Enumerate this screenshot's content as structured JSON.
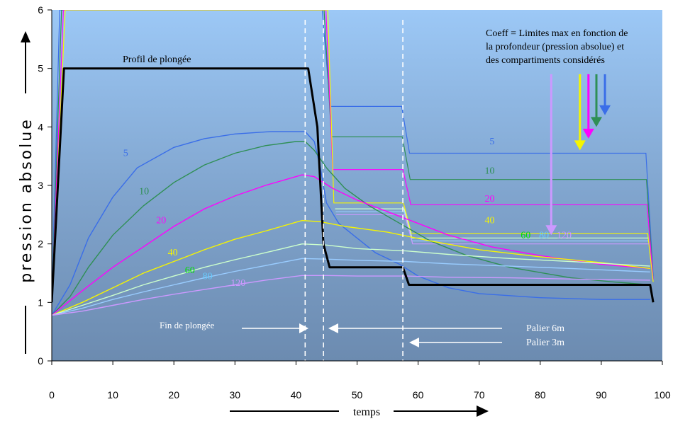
{
  "chart_data": {
    "type": "line",
    "xlabel": "temps",
    "ylabel": "pression absolue",
    "xlim": [
      0,
      100
    ],
    "ylim": [
      0,
      6
    ],
    "xticks": [
      0,
      10,
      20,
      30,
      40,
      50,
      60,
      70,
      80,
      90,
      100
    ],
    "yticks": [
      0,
      1,
      2,
      3,
      4,
      5,
      6
    ],
    "grid": false,
    "profile": {
      "name": "Profil de plongée",
      "color": "#000000",
      "points": [
        [
          0,
          1
        ],
        [
          2,
          5
        ],
        [
          42,
          5
        ],
        [
          43.5,
          4
        ],
        [
          44.5,
          2
        ],
        [
          45.5,
          1.6
        ],
        [
          57.5,
          1.6
        ],
        [
          58.5,
          1.3
        ],
        [
          98,
          1.3
        ],
        [
          98.5,
          1
        ]
      ]
    },
    "series": [
      {
        "name": "5",
        "color": "#3a6ee8",
        "points": [
          [
            0,
            0.78
          ],
          [
            3,
            1.3
          ],
          [
            6,
            2.1
          ],
          [
            10,
            2.8
          ],
          [
            14,
            3.3
          ],
          [
            20,
            3.65
          ],
          [
            25,
            3.8
          ],
          [
            30,
            3.88
          ],
          [
            36,
            3.92
          ],
          [
            41.5,
            3.92
          ],
          [
            43,
            3.75
          ],
          [
            44,
            3.3
          ],
          [
            45,
            2.7
          ],
          [
            47,
            2.35
          ],
          [
            50,
            2.1
          ],
          [
            53,
            1.85
          ],
          [
            57,
            1.65
          ],
          [
            60,
            1.45
          ],
          [
            65,
            1.25
          ],
          [
            70,
            1.15
          ],
          [
            80,
            1.08
          ],
          [
            90,
            1.05
          ],
          [
            98,
            1.05
          ]
        ]
      },
      {
        "name": "10",
        "color": "#2f8f55",
        "points": [
          [
            0,
            0.78
          ],
          [
            3,
            1.1
          ],
          [
            6,
            1.6
          ],
          [
            10,
            2.15
          ],
          [
            15,
            2.65
          ],
          [
            20,
            3.05
          ],
          [
            25,
            3.35
          ],
          [
            30,
            3.55
          ],
          [
            35,
            3.68
          ],
          [
            40,
            3.75
          ],
          [
            41.5,
            3.75
          ],
          [
            43,
            3.6
          ],
          [
            45,
            3.3
          ],
          [
            48,
            2.95
          ],
          [
            52,
            2.65
          ],
          [
            57,
            2.35
          ],
          [
            62,
            2.05
          ],
          [
            68,
            1.8
          ],
          [
            75,
            1.6
          ],
          [
            85,
            1.42
          ],
          [
            92,
            1.35
          ],
          [
            98,
            1.3
          ]
        ]
      },
      {
        "name": "20",
        "color": "#ff00ff",
        "points": [
          [
            0,
            0.78
          ],
          [
            5,
            1.2
          ],
          [
            10,
            1.6
          ],
          [
            15,
            1.95
          ],
          [
            20,
            2.3
          ],
          [
            25,
            2.6
          ],
          [
            30,
            2.82
          ],
          [
            35,
            3.0
          ],
          [
            41,
            3.18
          ],
          [
            43,
            3.15
          ],
          [
            46,
            2.95
          ],
          [
            50,
            2.75
          ],
          [
            55,
            2.55
          ],
          [
            60,
            2.35
          ],
          [
            65,
            2.15
          ],
          [
            72,
            1.95
          ],
          [
            80,
            1.8
          ],
          [
            90,
            1.65
          ],
          [
            98,
            1.58
          ]
        ]
      },
      {
        "name": "40",
        "color": "#f5f500",
        "points": [
          [
            0,
            0.78
          ],
          [
            5,
            1.0
          ],
          [
            10,
            1.25
          ],
          [
            15,
            1.5
          ],
          [
            20,
            1.7
          ],
          [
            25,
            1.9
          ],
          [
            30,
            2.08
          ],
          [
            35,
            2.22
          ],
          [
            41,
            2.4
          ],
          [
            44,
            2.38
          ],
          [
            48,
            2.3
          ],
          [
            55,
            2.2
          ],
          [
            62,
            2.05
          ],
          [
            70,
            1.9
          ],
          [
            80,
            1.78
          ],
          [
            90,
            1.68
          ],
          [
            98,
            1.58
          ]
        ]
      },
      {
        "name": "60",
        "color": "#ccffcc",
        "points": [
          [
            0,
            0.78
          ],
          [
            5,
            0.95
          ],
          [
            10,
            1.12
          ],
          [
            15,
            1.3
          ],
          [
            20,
            1.45
          ],
          [
            25,
            1.6
          ],
          [
            30,
            1.73
          ],
          [
            35,
            1.85
          ],
          [
            41,
            2.0
          ],
          [
            45,
            1.98
          ],
          [
            50,
            1.92
          ],
          [
            58,
            1.88
          ],
          [
            65,
            1.82
          ],
          [
            75,
            1.75
          ],
          [
            85,
            1.7
          ],
          [
            98,
            1.62
          ]
        ]
      },
      {
        "name": "80",
        "color": "#99ccff",
        "points": [
          [
            0,
            0.78
          ],
          [
            5,
            0.9
          ],
          [
            10,
            1.05
          ],
          [
            15,
            1.18
          ],
          [
            20,
            1.3
          ],
          [
            25,
            1.42
          ],
          [
            30,
            1.53
          ],
          [
            35,
            1.63
          ],
          [
            41,
            1.75
          ],
          [
            45,
            1.74
          ],
          [
            50,
            1.72
          ],
          [
            58,
            1.7
          ],
          [
            65,
            1.66
          ],
          [
            75,
            1.62
          ],
          [
            85,
            1.58
          ],
          [
            98,
            1.52
          ]
        ]
      },
      {
        "name": "120",
        "color": "#cc99ff",
        "points": [
          [
            0,
            0.78
          ],
          [
            5,
            0.85
          ],
          [
            10,
            0.95
          ],
          [
            15,
            1.05
          ],
          [
            20,
            1.14
          ],
          [
            25,
            1.22
          ],
          [
            30,
            1.3
          ],
          [
            35,
            1.38
          ],
          [
            41,
            1.46
          ],
          [
            45,
            1.46
          ],
          [
            50,
            1.45
          ],
          [
            58,
            1.45
          ],
          [
            65,
            1.43
          ],
          [
            75,
            1.42
          ],
          [
            85,
            1.4
          ],
          [
            98,
            1.38
          ]
        ]
      }
    ],
    "limits": [
      {
        "name": "5",
        "color": "#3a6ee8",
        "points": [
          [
            0,
            1
          ],
          [
            1.3,
            6
          ],
          [
            44.3,
            6
          ],
          [
            45.6,
            4.35
          ],
          [
            57.3,
            4.35
          ],
          [
            58.6,
            3.55
          ],
          [
            97.3,
            3.55
          ],
          [
            98.5,
            1.45
          ]
        ]
      },
      {
        "name": "10",
        "color": "#2f8f55",
        "points": [
          [
            0,
            1
          ],
          [
            1.6,
            6
          ],
          [
            44.6,
            6
          ],
          [
            45.8,
            3.83
          ],
          [
            57.4,
            3.83
          ],
          [
            58.7,
            3.1
          ],
          [
            97.4,
            3.1
          ],
          [
            98.5,
            1.4
          ]
        ]
      },
      {
        "name": "20",
        "color": "#ff00ff",
        "points": [
          [
            0,
            1
          ],
          [
            1.9,
            6
          ],
          [
            44.9,
            6
          ],
          [
            46,
            3.27
          ],
          [
            57.5,
            3.27
          ],
          [
            58.8,
            2.67
          ],
          [
            97.5,
            2.67
          ],
          [
            98.5,
            1.38
          ]
        ]
      },
      {
        "name": "40",
        "color": "#f5f500",
        "points": [
          [
            0,
            1
          ],
          [
            2.2,
            6
          ],
          [
            45.2,
            6
          ],
          [
            46.2,
            2.7
          ],
          [
            57.6,
            2.7
          ],
          [
            58.9,
            2.18
          ],
          [
            97.6,
            2.18
          ],
          [
            98.5,
            1.35
          ]
        ]
      },
      {
        "name": "60",
        "color": "#ccffcc",
        "points": [
          [
            46.4,
            2.6
          ],
          [
            57.7,
            2.6
          ],
          [
            59,
            2.1
          ],
          [
            97.7,
            2.1
          ]
        ]
      },
      {
        "name": "80",
        "color": "#99ccff",
        "points": [
          [
            46.5,
            2.55
          ],
          [
            57.7,
            2.55
          ],
          [
            59,
            2.05
          ],
          [
            97.7,
            2.05
          ]
        ]
      },
      {
        "name": "120",
        "color": "#cc99ff",
        "points": [
          [
            46.6,
            2.5
          ],
          [
            57.8,
            2.5
          ],
          [
            59.1,
            2.0
          ],
          [
            97.8,
            2.0
          ]
        ]
      }
    ],
    "markers": [
      {
        "name": "Fin de plongée",
        "x": 41.5
      },
      {
        "name": "Palier 6m",
        "x": 44.5
      },
      {
        "name": "Palier 3m",
        "x": 57.5
      }
    ],
    "annotations": {
      "profile_label": "Profil de plongée",
      "fin_label": "Fin de plongée",
      "palier6_label": "Palier 6m",
      "palier3_label": "Palier 3m",
      "coeff_line1": "Coeff = Limites max en fonction de",
      "coeff_line2": "la profondeur (pression absolue) et",
      "coeff_line3": "des compartiments considérés"
    },
    "curve_labels": [
      {
        "text": "5",
        "color": "#3a6ee8",
        "x": 11.7,
        "y": 3.5
      },
      {
        "text": "10",
        "color": "#2f8f55",
        "x": 14.3,
        "y": 2.85
      },
      {
        "text": "20",
        "color": "#ff00ff",
        "x": 17.1,
        "y": 2.35
      },
      {
        "text": "40",
        "color": "#f5f500",
        "x": 19,
        "y": 1.8
      },
      {
        "text": "60",
        "color": "#00e000",
        "x": 21.8,
        "y": 1.5
      },
      {
        "text": "80",
        "color": "#66ccff",
        "x": 24.7,
        "y": 1.4
      },
      {
        "text": "120",
        "color": "#cc99ff",
        "x": 29.3,
        "y": 1.28
      }
    ],
    "limit_labels": [
      {
        "text": "5",
        "color": "#3a6ee8",
        "x": 71.7,
        "y": 3.7
      },
      {
        "text": "10",
        "color": "#2f8f55",
        "x": 70.9,
        "y": 3.2
      },
      {
        "text": "20",
        "color": "#ff00ff",
        "x": 70.9,
        "y": 2.72
      },
      {
        "text": "40",
        "color": "#f5f500",
        "x": 70.9,
        "y": 2.35
      },
      {
        "text": "60",
        "color": "#00e000",
        "x": 76.8,
        "y": 2.1
      },
      {
        "text": "80",
        "color": "#66ccff",
        "x": 79.8,
        "y": 2.1
      },
      {
        "text": "120",
        "color": "#cc99ff",
        "x": 82.7,
        "y": 2.1
      }
    ],
    "coeff_arrows": [
      {
        "color": "#cc99ff",
        "x": 81.8,
        "y_top": 4.9,
        "y_bottom": 2.15
      },
      {
        "color": "#f5f500",
        "x": 86.5,
        "y_top": 4.9,
        "y_bottom": 3.6
      },
      {
        "color": "#ff00ff",
        "x": 87.9,
        "y_top": 4.9,
        "y_bottom": 3.8
      },
      {
        "color": "#2f8f55",
        "x": 89.2,
        "y_top": 4.9,
        "y_bottom": 4.0
      },
      {
        "color": "#3a6ee8",
        "x": 90.6,
        "y_top": 4.9,
        "y_bottom": 4.2
      }
    ]
  }
}
